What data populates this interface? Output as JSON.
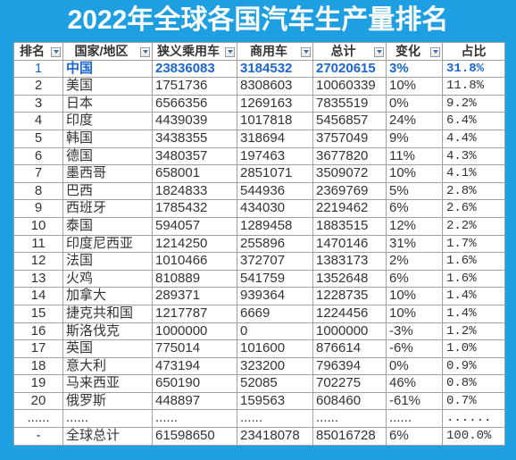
{
  "colors": {
    "background": "#1e9fe2",
    "title": "#ffffff",
    "table_background": "#ffffff",
    "text": "#333333",
    "highlight": "#1a66d2",
    "grid": "#a0a0a0",
    "filter_arrow": "#3a6fb0"
  },
  "chart_data": {
    "type": "table",
    "title": "2022年全球各国汽车生产量排名",
    "columns": [
      "排名",
      "国家/地区",
      "狭义乘用车",
      "商用车",
      "总计",
      "变化",
      "占比"
    ],
    "rows": [
      {
        "cells": [
          1,
          "中国",
          23836083,
          3184532,
          27020615,
          "3%",
          "31.8%"
        ],
        "highlight": true
      },
      {
        "cells": [
          2,
          "美国",
          1751736,
          8308603,
          10060339,
          "10%",
          "11.8%"
        ]
      },
      {
        "cells": [
          3,
          "日本",
          6566356,
          1269163,
          7835519,
          "0%",
          "9.2%"
        ]
      },
      {
        "cells": [
          4,
          "印度",
          4439039,
          1017818,
          5456857,
          "24%",
          "6.4%"
        ]
      },
      {
        "cells": [
          5,
          "韩国",
          3438355,
          318694,
          3757049,
          "9%",
          "4.4%"
        ]
      },
      {
        "cells": [
          6,
          "德国",
          3480357,
          197463,
          3677820,
          "11%",
          "4.3%"
        ]
      },
      {
        "cells": [
          7,
          "墨西哥",
          658001,
          2851071,
          3509072,
          "10%",
          "4.1%"
        ]
      },
      {
        "cells": [
          8,
          "巴西",
          1824833,
          544936,
          2369769,
          "5%",
          "2.8%"
        ]
      },
      {
        "cells": [
          9,
          "西班牙",
          1785432,
          434030,
          2219462,
          "6%",
          "2.6%"
        ]
      },
      {
        "cells": [
          10,
          "泰国",
          594057,
          1289458,
          1883515,
          "12%",
          "2.2%"
        ]
      },
      {
        "cells": [
          11,
          "印度尼西亚",
          1214250,
          255896,
          1470146,
          "31%",
          "1.7%"
        ]
      },
      {
        "cells": [
          12,
          "法国",
          1010466,
          372707,
          1383173,
          "2%",
          "1.6%"
        ]
      },
      {
        "cells": [
          13,
          "火鸡",
          810889,
          541759,
          1352648,
          "6%",
          "1.6%"
        ]
      },
      {
        "cells": [
          14,
          "加拿大",
          289371,
          939364,
          1228735,
          "10%",
          "1.4%"
        ]
      },
      {
        "cells": [
          15,
          "捷克共和国",
          1217787,
          6669,
          1224456,
          "10%",
          "1.4%"
        ]
      },
      {
        "cells": [
          16,
          "斯洛伐克",
          1000000,
          0,
          1000000,
          "-3%",
          "1.2%"
        ]
      },
      {
        "cells": [
          17,
          "英国",
          775014,
          101600,
          876614,
          "-6%",
          "1.0%"
        ]
      },
      {
        "cells": [
          18,
          "意大利",
          473194,
          323200,
          796394,
          "0%",
          "0.9%"
        ]
      },
      {
        "cells": [
          19,
          "马来西亚",
          650190,
          52085,
          702275,
          "46%",
          "0.8%"
        ]
      },
      {
        "cells": [
          20,
          "俄罗斯",
          448897,
          159563,
          608460,
          "-61%",
          "0.7%"
        ]
      },
      {
        "cells": [
          "......",
          "......",
          "......",
          "......",
          "......",
          "......",
          "......"
        ]
      },
      {
        "cells": [
          "-",
          "全球总计",
          61598650,
          23418078,
          85016728,
          "6%",
          "100.0%"
        ]
      }
    ]
  }
}
